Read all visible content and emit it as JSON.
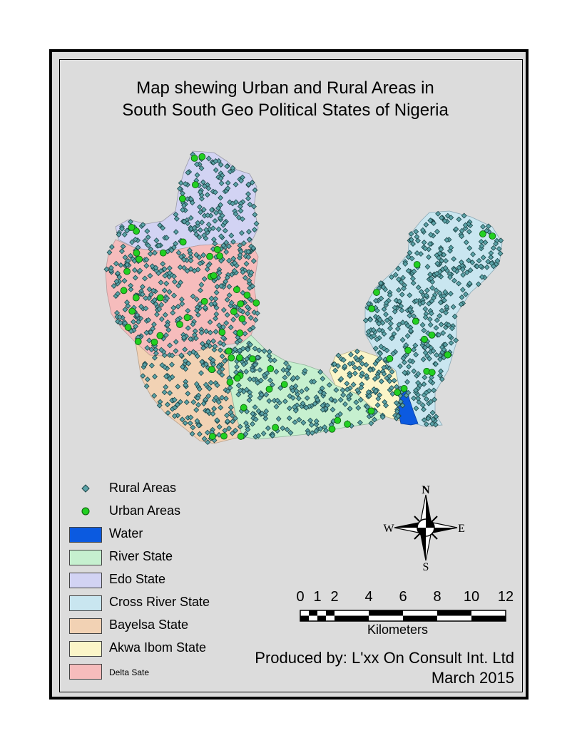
{
  "map": {
    "title_line1": "Map shewing Urban and Rural Areas in",
    "title_line2": "South South Geo Political States of Nigeria"
  },
  "colors": {
    "background": "#dcdcdc",
    "rural": "#5ba3a8",
    "urban": "#22d022",
    "water": "#0b5ae0",
    "river_state": "#c6f0cf",
    "edo_state": "#d2d3f3",
    "cross_river_state": "#c9e6f0",
    "bayelsa_state": "#f2d2b4",
    "akwa_ibom_state": "#fbf5c8",
    "delta_state": "#f6bcbc"
  },
  "legend": {
    "items": [
      {
        "label": "Rural Areas",
        "kind": "rural-point",
        "color": "#5ba3a8"
      },
      {
        "label": "Urban Areas",
        "kind": "urban-point",
        "color": "#22d022"
      },
      {
        "label": "Water",
        "kind": "polygon",
        "color": "#0b5ae0"
      },
      {
        "label": "River State",
        "kind": "polygon",
        "color": "#c6f0cf"
      },
      {
        "label": "Edo State",
        "kind": "polygon",
        "color": "#d2d3f3"
      },
      {
        "label": "Cross River State",
        "kind": "polygon",
        "color": "#c9e6f0"
      },
      {
        "label": "Bayelsa State",
        "kind": "polygon",
        "color": "#f2d2b4"
      },
      {
        "label": "Akwa Ibom State",
        "kind": "polygon",
        "color": "#fbf5c8"
      },
      {
        "label": "Delta Sate",
        "kind": "polygon",
        "color": "#f6bcbc"
      }
    ]
  },
  "compass": {
    "n": "N",
    "s": "S",
    "e": "E",
    "w": "W"
  },
  "scale_bar": {
    "ticks": [
      "0",
      "1",
      "2",
      "4",
      "6",
      "8",
      "10",
      "12"
    ],
    "unit": "Kilometers"
  },
  "credits": {
    "producer": "Produced by: L'xx On Consult Int. Ltd",
    "date": "March 2015"
  }
}
